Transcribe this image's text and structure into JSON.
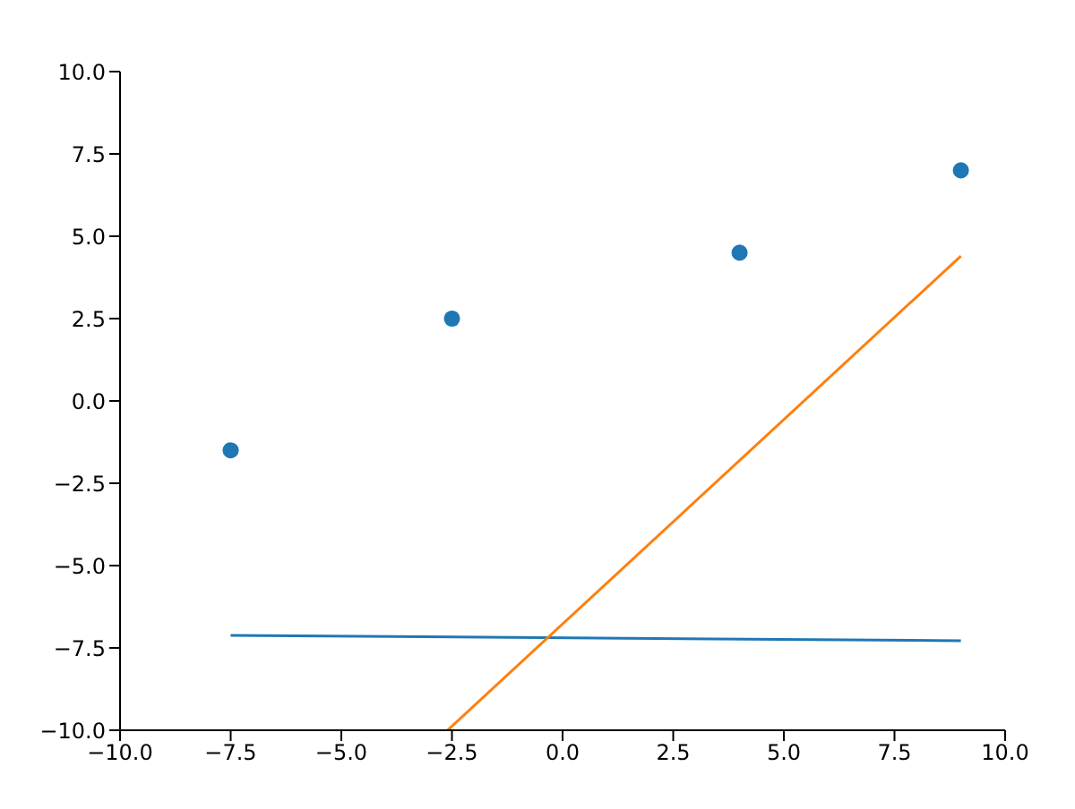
{
  "chart_data": {
    "type": "scatter",
    "xlim": [
      -10,
      10
    ],
    "ylim": [
      -10,
      10
    ],
    "xticks": [
      {
        "value": -10,
        "label": "−10.0"
      },
      {
        "value": -7.5,
        "label": "−7.5"
      },
      {
        "value": -5,
        "label": "−5.0"
      },
      {
        "value": -2.5,
        "label": "−2.5"
      },
      {
        "value": 0,
        "label": "0.0"
      },
      {
        "value": 2.5,
        "label": "2.5"
      },
      {
        "value": 5,
        "label": "5.0"
      },
      {
        "value": 7.5,
        "label": "7.5"
      },
      {
        "value": 10,
        "label": "10.0"
      }
    ],
    "yticks": [
      {
        "value": -10,
        "label": "−10.0"
      },
      {
        "value": -7.5,
        "label": "−7.5"
      },
      {
        "value": -5,
        "label": "−5.0"
      },
      {
        "value": -2.5,
        "label": "−2.5"
      },
      {
        "value": 0,
        "label": "0.0"
      },
      {
        "value": 2.5,
        "label": "2.5"
      },
      {
        "value": 5,
        "label": "5.0"
      },
      {
        "value": 7.5,
        "label": "7.5"
      },
      {
        "value": 10,
        "label": "10.0"
      }
    ],
    "grid": false,
    "legend": false,
    "series": [
      {
        "marker": "circle",
        "color": "#1f77b4",
        "x": [
          -7.5,
          -2.5,
          4,
          9
        ],
        "values": [
          -1.5,
          2.5,
          4.5,
          7
        ]
      },
      {
        "type": "line",
        "color": "#1f77b4",
        "x": [
          -7.5,
          9
        ],
        "values": [
          -7.12,
          -7.28
        ]
      },
      {
        "type": "line",
        "color": "#ff7f0e",
        "x": [
          -2.6,
          9
        ],
        "values": [
          -10,
          4.4
        ]
      }
    ]
  }
}
